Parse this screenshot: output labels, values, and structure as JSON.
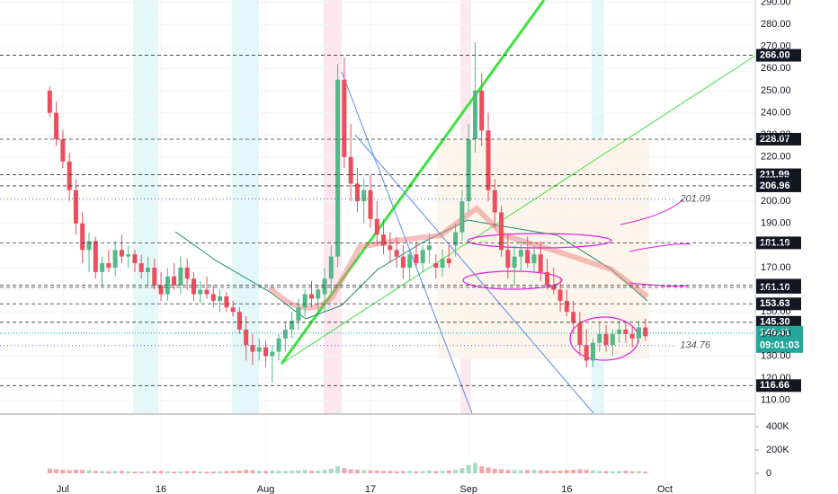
{
  "chart_data": {
    "type": "candlestick",
    "up_color": "#53b987",
    "down_color": "#eb4d5c",
    "grid": true,
    "x": [
      -2,
      -1,
      0,
      1,
      2,
      3,
      4,
      5,
      6,
      7,
      8,
      9,
      10,
      11,
      12,
      13,
      14,
      15,
      16,
      17,
      18,
      19,
      20,
      21,
      22,
      23,
      24,
      25,
      26,
      27,
      28,
      29,
      30,
      31,
      32,
      33,
      34,
      35,
      36,
      37,
      38,
      39,
      40,
      41,
      42,
      43,
      44,
      45,
      46,
      47,
      48,
      49,
      50,
      51,
      52,
      53,
      54,
      55,
      56,
      57,
      58,
      59,
      60,
      61,
      62,
      63,
      64,
      65,
      66,
      67,
      68,
      69,
      70,
      71,
      72,
      73,
      74,
      75,
      76,
      77,
      78,
      79,
      80,
      81,
      82,
      83,
      84,
      85,
      86,
      87,
      88,
      89
    ],
    "candles": [
      [
        250,
        252,
        238,
        240
      ],
      [
        240,
        245,
        225,
        228
      ],
      [
        228,
        232,
        215,
        218
      ],
      [
        218,
        222,
        200,
        205
      ],
      [
        205,
        210,
        185,
        190
      ],
      [
        190,
        195,
        172,
        178
      ],
      [
        178,
        186,
        168,
        182
      ],
      [
        182,
        184,
        165,
        168
      ],
      [
        168,
        175,
        162,
        172
      ],
      [
        172,
        178,
        168,
        170
      ],
      [
        170,
        182,
        166,
        178
      ],
      [
        178,
        185,
        172,
        175
      ],
      [
        175,
        180,
        170,
        176
      ],
      [
        176,
        178,
        168,
        172
      ],
      [
        172,
        176,
        165,
        168
      ],
      [
        168,
        175,
        162,
        170
      ],
      [
        170,
        174,
        160,
        162
      ],
      [
        162,
        168,
        155,
        158
      ],
      [
        158,
        170,
        155,
        166
      ],
      [
        166,
        172,
        160,
        162
      ],
      [
        162,
        175,
        158,
        170
      ],
      [
        170,
        174,
        160,
        165
      ],
      [
        165,
        168,
        155,
        158
      ],
      [
        158,
        164,
        154,
        160
      ],
      [
        160,
        166,
        156,
        158
      ],
      [
        158,
        162,
        152,
        155
      ],
      [
        155,
        160,
        150,
        157
      ],
      [
        157,
        159,
        150,
        152
      ],
      [
        152,
        155,
        148,
        150
      ],
      [
        150,
        152,
        140,
        142
      ],
      [
        142,
        148,
        128,
        135
      ],
      [
        135,
        140,
        126,
        132
      ],
      [
        132,
        138,
        128,
        134
      ],
      [
        134,
        137,
        125,
        130
      ],
      [
        130,
        135,
        118,
        132
      ],
      [
        132,
        140,
        128,
        138
      ],
      [
        138,
        145,
        132,
        142
      ],
      [
        142,
        150,
        138,
        146
      ],
      [
        146,
        156,
        142,
        152
      ],
      [
        152,
        160,
        148,
        158
      ],
      [
        158,
        164,
        152,
        156
      ],
      [
        156,
        162,
        150,
        160
      ],
      [
        158,
        170,
        150,
        165
      ],
      [
        165,
        180,
        158,
        175
      ],
      [
        175,
        262,
        170,
        255
      ],
      [
        255,
        265,
        215,
        220
      ],
      [
        220,
        235,
        200,
        208
      ],
      [
        208,
        215,
        195,
        200
      ],
      [
        200,
        210,
        190,
        205
      ],
      [
        205,
        212,
        188,
        192
      ],
      [
        192,
        200,
        180,
        185
      ],
      [
        185,
        192,
        176,
        180
      ],
      [
        180,
        186,
        172,
        178
      ],
      [
        178,
        184,
        170,
        175
      ],
      [
        175,
        180,
        165,
        170
      ],
      [
        170,
        178,
        164,
        176
      ],
      [
        176,
        182,
        170,
        172
      ],
      [
        172,
        180,
        168,
        178
      ],
      [
        178,
        185,
        172,
        180
      ],
      [
        172,
        176,
        165,
        170
      ],
      [
        170,
        178,
        166,
        174
      ],
      [
        174,
        180,
        170,
        172
      ],
      [
        180,
        190,
        175,
        186
      ],
      [
        186,
        205,
        182,
        200
      ],
      [
        200,
        235,
        195,
        228
      ],
      [
        228,
        272,
        222,
        250
      ],
      [
        250,
        258,
        225,
        232
      ],
      [
        232,
        240,
        200,
        205
      ],
      [
        205,
        210,
        188,
        195
      ],
      [
        195,
        198,
        175,
        178
      ],
      [
        178,
        185,
        165,
        170
      ],
      [
        170,
        180,
        162,
        175
      ],
      [
        175,
        182,
        168,
        178
      ],
      [
        178,
        184,
        170,
        172
      ],
      [
        172,
        180,
        168,
        176
      ],
      [
        176,
        182,
        164,
        168
      ],
      [
        168,
        174,
        160,
        162
      ],
      [
        162,
        170,
        158,
        160
      ],
      [
        160,
        165,
        150,
        155
      ],
      [
        155,
        160,
        148,
        150
      ],
      [
        150,
        155,
        140,
        145
      ],
      [
        145,
        150,
        130,
        135
      ],
      [
        135,
        142,
        125,
        128
      ],
      [
        128,
        138,
        125,
        136
      ],
      [
        136,
        145,
        132,
        140
      ],
      [
        140,
        144,
        132,
        135
      ],
      [
        135,
        142,
        130,
        140
      ],
      [
        140,
        146,
        136,
        142
      ],
      [
        142,
        145,
        136,
        140
      ],
      [
        140,
        144,
        134,
        138
      ],
      [
        138,
        146,
        136,
        143
      ],
      [
        143,
        147,
        137,
        139
      ]
    ],
    "volume": [
      40000,
      35000,
      30000,
      28000,
      32000,
      30000,
      25000,
      22000,
      20000,
      18000,
      20000,
      22000,
      18000,
      16000,
      15000,
      18000,
      20000,
      22000,
      18000,
      15000,
      16000,
      18000,
      20000,
      15000,
      14000,
      16000,
      18000,
      20000,
      22000,
      25000,
      30000,
      28000,
      22000,
      20000,
      25000,
      22000,
      20000,
      24000,
      26000,
      28000,
      22000,
      24000,
      30000,
      40000,
      60000,
      45000,
      35000,
      30000,
      28000,
      26000,
      24000,
      22000,
      20000,
      18000,
      20000,
      22000,
      18000,
      20000,
      24000,
      20000,
      22000,
      25000,
      30000,
      45000,
      70000,
      90000,
      60000,
      50000,
      40000,
      35000,
      30000,
      28000,
      26000,
      30000,
      28000,
      26000,
      24000,
      22000,
      25000,
      28000,
      30000,
      35000,
      30000,
      25000,
      22000,
      20000,
      18000,
      20000,
      22000,
      18000,
      20000,
      16000
    ],
    "xlim": [
      -9.6,
      105.8
    ],
    "ylim": [
      104.2,
      291
    ],
    "vol_ylim": [
      -100000,
      500000
    ],
    "xticks": [
      {
        "value": 0,
        "label": "Jul"
      },
      {
        "value": 15,
        "label": "16"
      },
      {
        "value": 31,
        "label": "Aug"
      },
      {
        "value": 47,
        "label": "17"
      },
      {
        "value": 62,
        "label": "Sep"
      },
      {
        "value": 77,
        "label": "16"
      },
      {
        "value": 92,
        "label": "Oct"
      }
    ],
    "yticks": [
      {
        "value": 110,
        "label": "110.00"
      },
      {
        "value": 120,
        "label": "120.00"
      },
      {
        "value": 130,
        "label": "130.00"
      },
      {
        "value": 140,
        "label": "140.00"
      },
      {
        "value": 150,
        "label": "150.00"
      },
      {
        "value": 160,
        "label": "160.00"
      },
      {
        "value": 170,
        "label": "170.00"
      },
      {
        "value": 180,
        "label": "180.00"
      },
      {
        "value": 190,
        "label": "190.00"
      },
      {
        "value": 200,
        "label": "200.00"
      },
      {
        "value": 210,
        "label": "210.00"
      },
      {
        "value": 220,
        "label": "220.00"
      },
      {
        "value": 230,
        "label": "230.00"
      },
      {
        "value": 240,
        "label": "240.00"
      },
      {
        "value": 250,
        "label": "250.00"
      },
      {
        "value": 260,
        "label": "260.00"
      },
      {
        "value": 270,
        "label": "270.00"
      },
      {
        "value": 280,
        "label": "280.00"
      },
      {
        "value": 290,
        "label": "290.00"
      }
    ],
    "vol_yticks": [
      0,
      {
        "value": 200000,
        "label": "200K"
      },
      {
        "value": 400000,
        "label": "400K"
      }
    ],
    "levels": [
      {
        "value": 266,
        "label": "266.00"
      },
      {
        "value": 228.07,
        "label": "228.07"
      },
      {
        "value": 211.99,
        "label": "211.99"
      },
      {
        "value": 206.96,
        "label": "206.96"
      },
      {
        "value": 181.19,
        "label": "181.19"
      },
      {
        "value": 162.08,
        "label": "162.08"
      },
      {
        "value": 161.1,
        "label": "161.10"
      },
      {
        "value": 153.63,
        "label": "153.63"
      },
      {
        "value": 145.3,
        "label": "145.30"
      },
      {
        "value": 116.66,
        "label": "116.66"
      }
    ],
    "annotations": [
      {
        "value": 201.09,
        "label": "201.09"
      },
      {
        "value": 134.76,
        "label": "134.76"
      }
    ],
    "current": {
      "value": 140.41,
      "label": "140.41",
      "countdown": "09:01:03",
      "color": "#26a69a"
    }
  }
}
